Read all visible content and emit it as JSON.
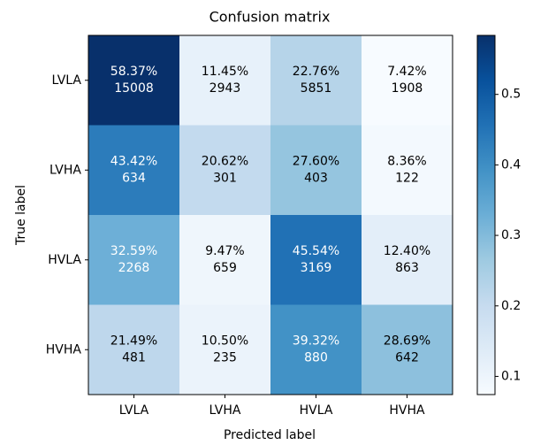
{
  "chart_data": {
    "type": "heatmap",
    "title": "Confusion matrix",
    "x_label": "Predicted label",
    "y_label": "True label",
    "x_categories": [
      "LVLA",
      "LVHA",
      "HVLA",
      "HVHA"
    ],
    "y_categories": [
      "LVLA",
      "LVHA",
      "HVLA",
      "HVHA"
    ],
    "values": [
      [
        0.5837,
        0.1145,
        0.2276,
        0.0742
      ],
      [
        0.4342,
        0.2062,
        0.276,
        0.0836
      ],
      [
        0.3259,
        0.0947,
        0.4554,
        0.124
      ],
      [
        0.2149,
        0.105,
        0.3932,
        0.2869
      ]
    ],
    "value_labels": [
      [
        "58.37%",
        "11.45%",
        "22.76%",
        "7.42%"
      ],
      [
        "43.42%",
        "20.62%",
        "27.60%",
        "8.36%"
      ],
      [
        "32.59%",
        "9.47%",
        "45.54%",
        "12.40%"
      ],
      [
        "21.49%",
        "10.50%",
        "39.32%",
        "28.69%"
      ]
    ],
    "counts": [
      [
        15008,
        2943,
        5851,
        1908
      ],
      [
        634,
        301,
        403,
        122
      ],
      [
        2268,
        659,
        3169,
        863
      ],
      [
        481,
        235,
        880,
        642
      ]
    ],
    "clim": [
      0.0742,
      0.5837
    ],
    "cticks": [
      0.1,
      0.2,
      0.3,
      0.4,
      0.5
    ],
    "colormap": [
      "#f7fbff",
      "#deebf7",
      "#c6dbef",
      "#9ecae1",
      "#6baed6",
      "#4292c6",
      "#2171b5",
      "#08519c",
      "#08306b"
    ]
  }
}
